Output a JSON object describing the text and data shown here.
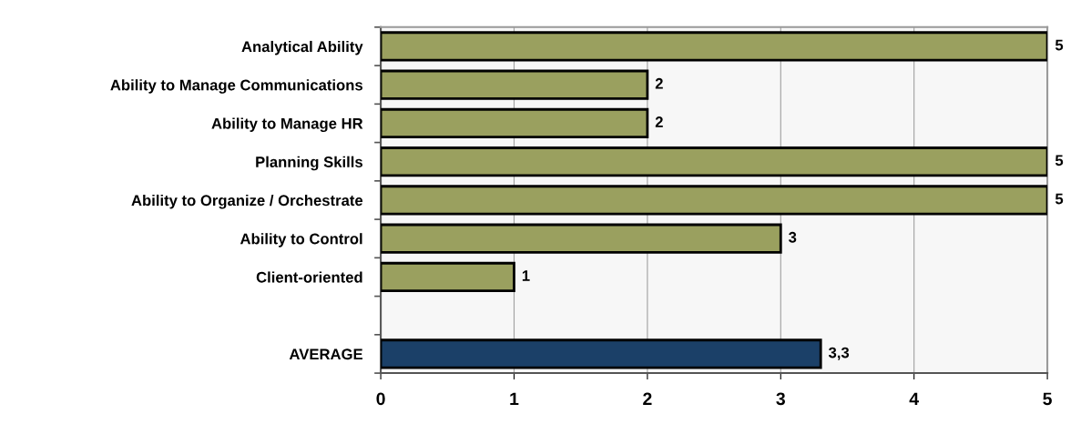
{
  "chart_data": {
    "type": "bar",
    "orientation": "horizontal",
    "categories": [
      "Analytical Ability",
      "Ability to Manage Communications",
      "Ability to Manage HR",
      "Planning Skills",
      "Ability to Organize / Orchestrate",
      "Ability to Control",
      "Client-oriented",
      null,
      "AVERAGE"
    ],
    "values": [
      5,
      2,
      2,
      5,
      5,
      3,
      1,
      null,
      3.3
    ],
    "colors": [
      "#9aa05f",
      "#9aa05f",
      "#9aa05f",
      "#9aa05f",
      "#9aa05f",
      "#9aa05f",
      "#9aa05f",
      "#9aa05f",
      "#1b4068"
    ],
    "value_labels": [
      "5",
      "2",
      "2",
      "5",
      "5",
      "3",
      "1",
      null,
      "3,3"
    ],
    "xlim": [
      0,
      5
    ],
    "xticks": [
      0,
      1,
      2,
      3,
      4,
      5
    ],
    "grid": "x"
  }
}
